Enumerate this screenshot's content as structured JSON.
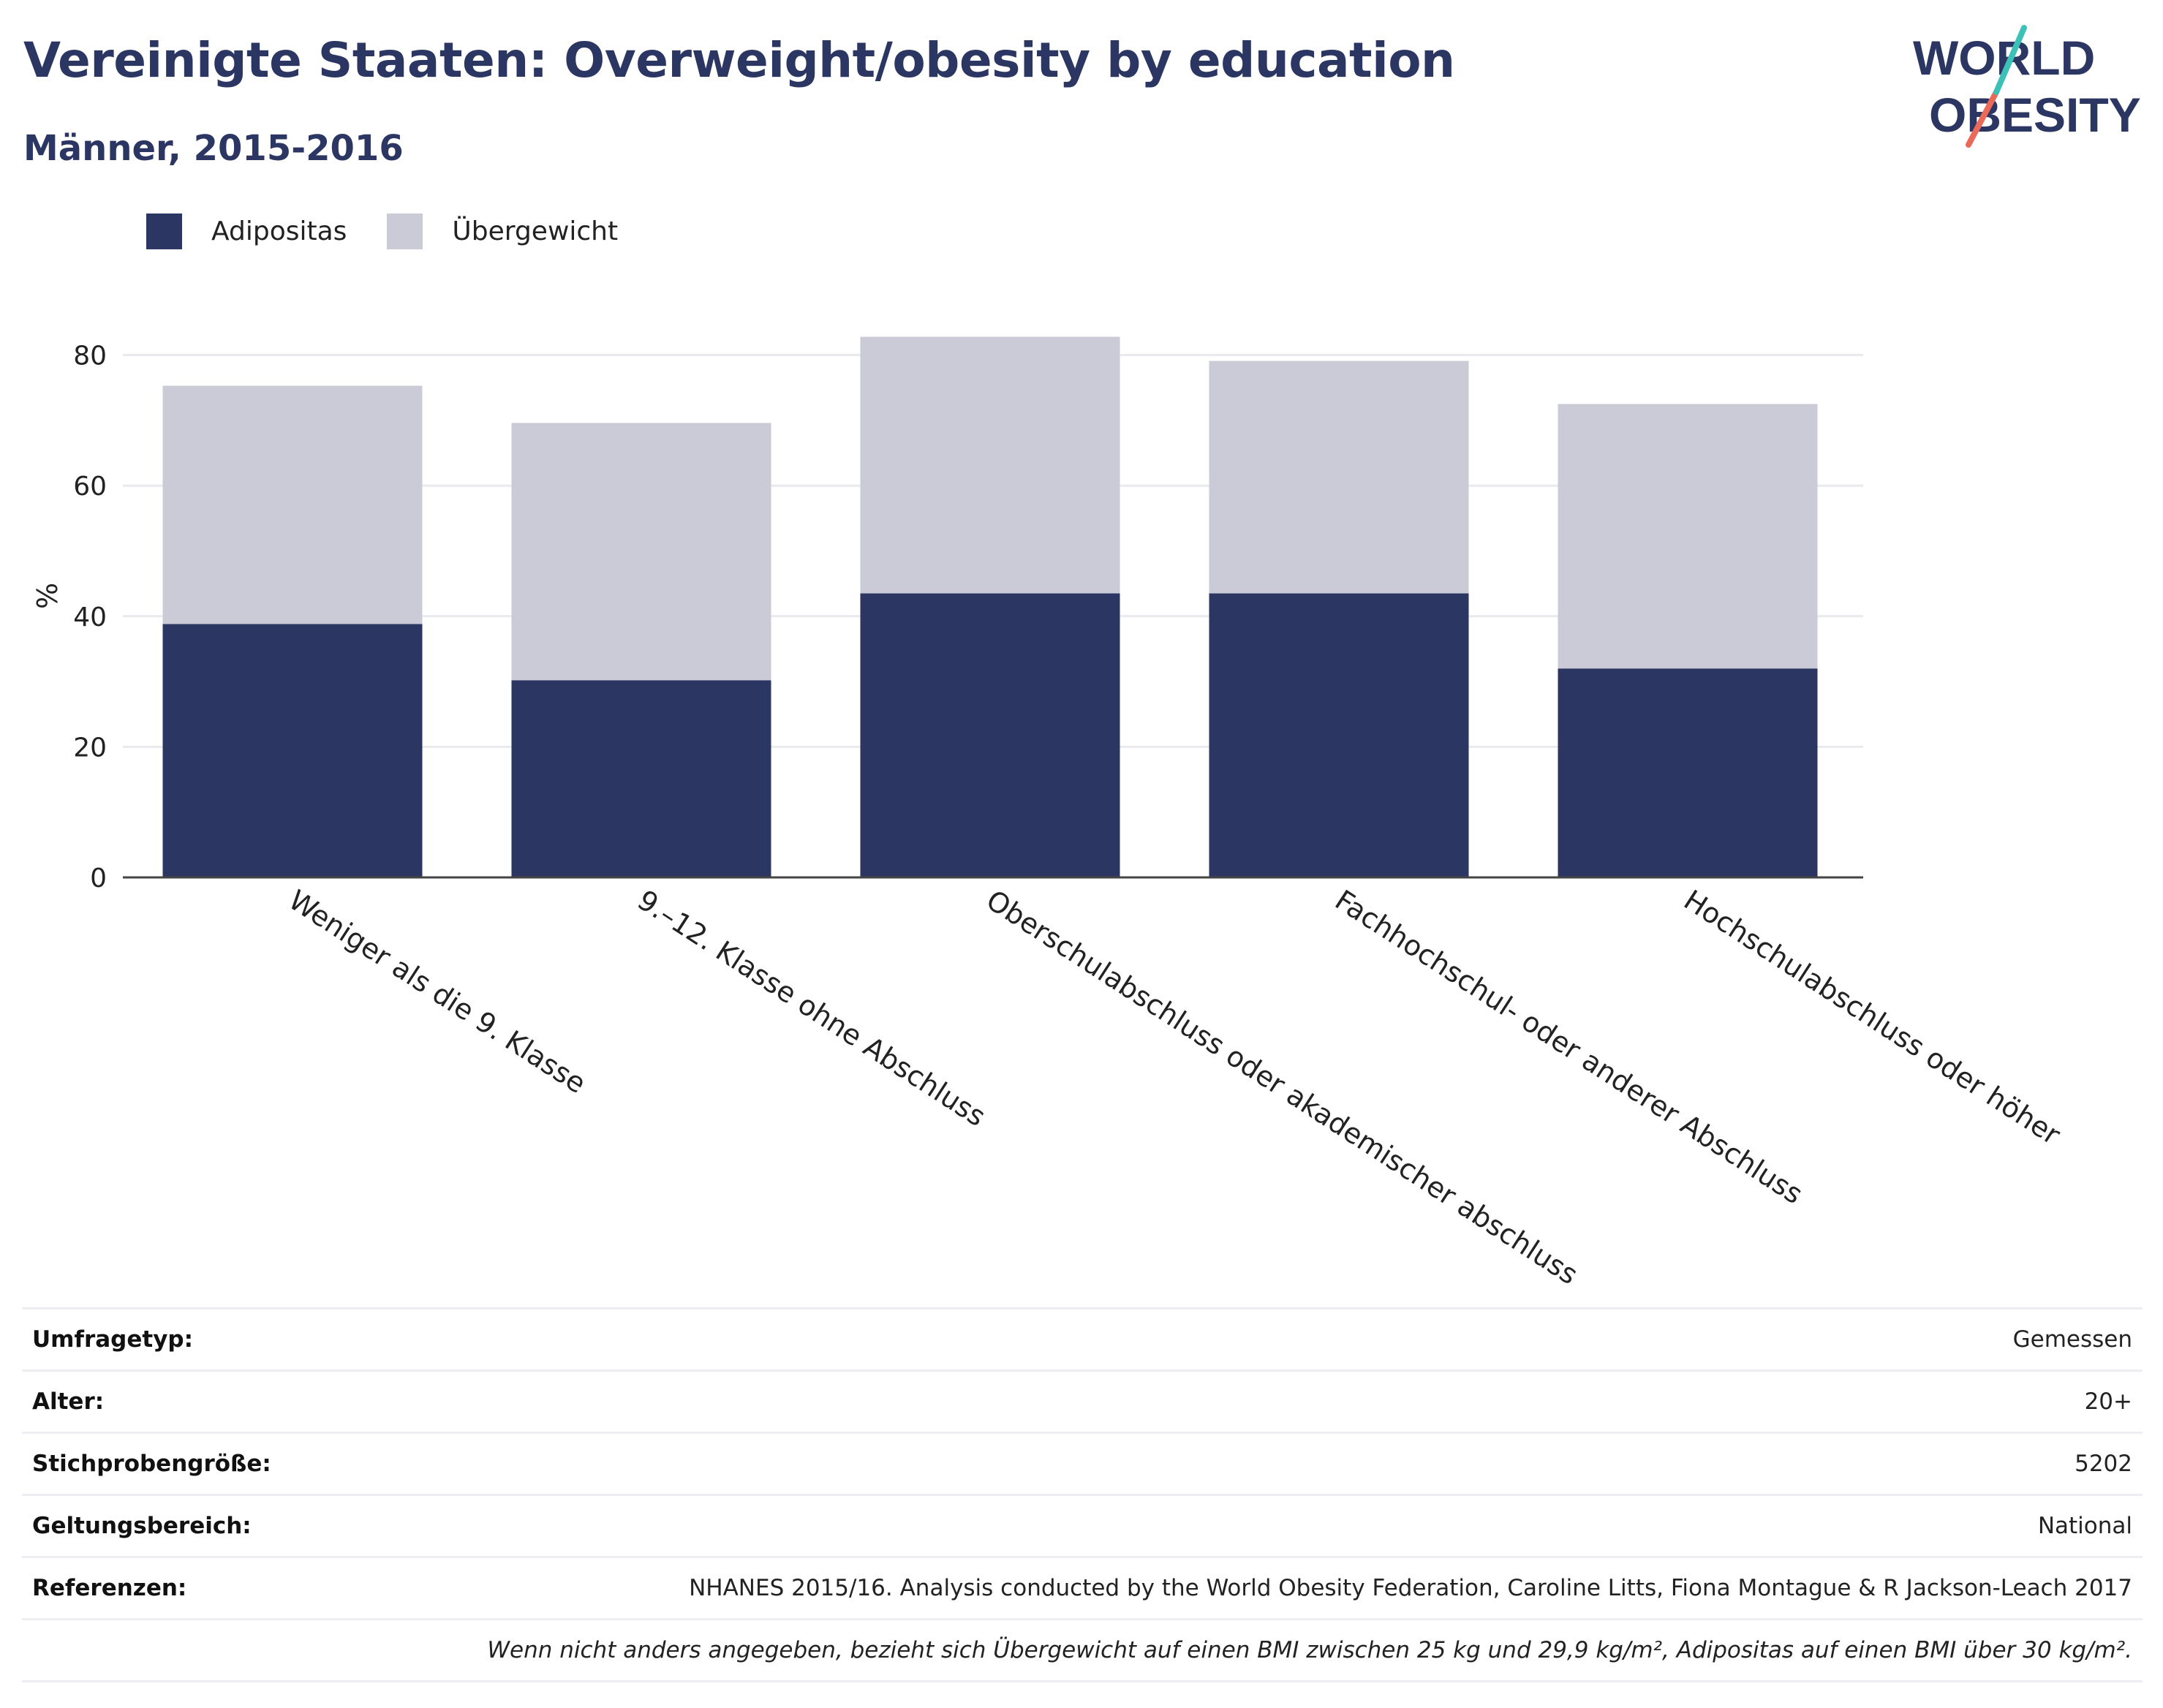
{
  "header": {
    "title": "Vereinigte Staaten: Overweight/obesity by education",
    "subtitle": "Männer, 2015-2016"
  },
  "logo": {
    "line1": "WORLD",
    "line2": "OBESITY"
  },
  "colors": {
    "obesity": "#2b3663",
    "overweight": "#cacbd7",
    "accent_teal": "#3cc1b8",
    "accent_coral": "#ea6a5a"
  },
  "chart_data": {
    "type": "bar",
    "stacked": true,
    "categories": [
      "Weniger als die 9. Klasse",
      "9.–12. Klasse ohne Abschluss",
      "Oberschulabschluss oder akademischer abschluss",
      "Fachhochschul- oder anderer Abschluss",
      "Hochschulabschluss oder höher"
    ],
    "series": [
      {
        "name": "Adipositas",
        "values": [
          38.8,
          30.2,
          43.5,
          43.5,
          32.0
        ]
      },
      {
        "name": "Übergewicht",
        "values": [
          36.5,
          39.4,
          39.3,
          35.6,
          40.5
        ]
      }
    ],
    "ylabel": "%",
    "yticks": [
      "0",
      "20",
      "40",
      "60",
      "80"
    ],
    "ylim": [
      0,
      90
    ],
    "grid": true,
    "legend_position": "top-left"
  },
  "meta": {
    "rows": [
      {
        "key": "Umfragetyp:",
        "value": "Gemessen"
      },
      {
        "key": "Alter:",
        "value": "20+"
      },
      {
        "key": "Stichprobengröße:",
        "value": "5202"
      },
      {
        "key": "Geltungsbereich:",
        "value": "National"
      },
      {
        "key": "Referenzen:",
        "value": "NHANES 2015/16. Analysis conducted by the World Obesity Federation, Caroline Litts, Fiona Montague & R Jackson-Leach 2017"
      }
    ],
    "note": "Wenn nicht anders angegeben, bezieht sich Übergewicht auf einen BMI zwischen 25 kg und 29,9 kg/m², Adipositas auf einen BMI über 30 kg/m²."
  }
}
